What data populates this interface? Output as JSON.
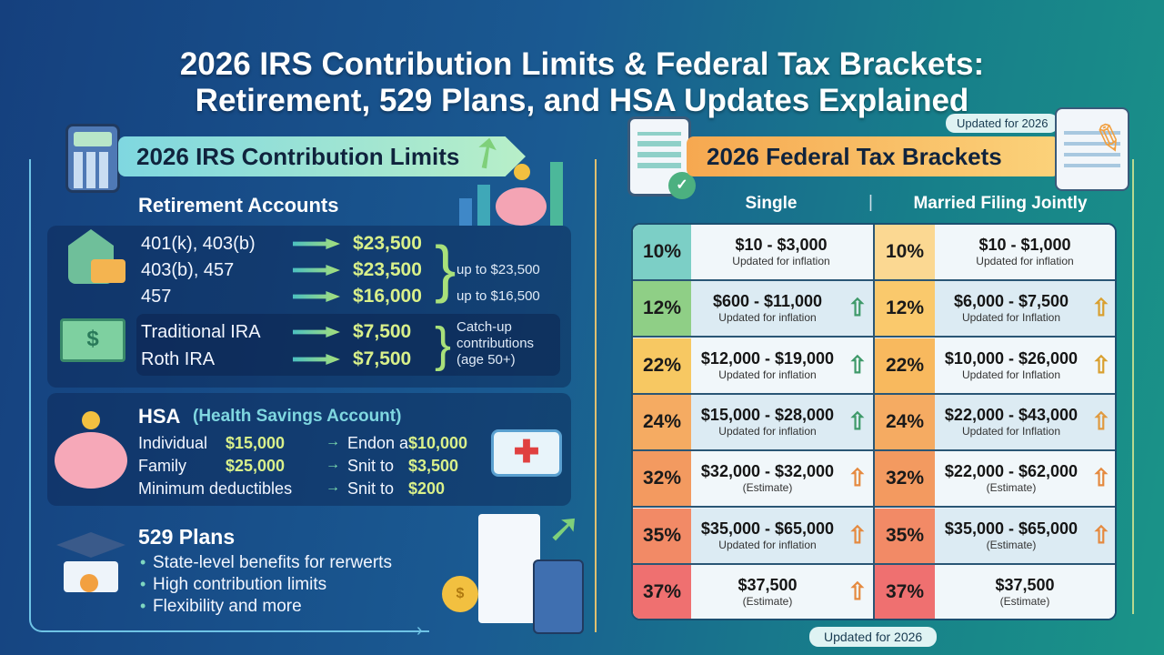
{
  "title": {
    "line1": "2026 IRS Contribution Limits & Federal Tax Brackets:",
    "line2": "Retirement, 529 Plans, and HSA Updates Explained"
  },
  "left": {
    "banner": "2026 IRS Contribution Limits",
    "retirement_heading": "Retirement Accounts",
    "retirement": [
      {
        "label": "401(k), 403(b)",
        "value": "$23,500"
      },
      {
        "label": "403(b), 457",
        "value": "$23,500"
      },
      {
        "label": "457",
        "value": "$16,000"
      }
    ],
    "retirement_notes": [
      "up to $23,500",
      "up to $16,500"
    ],
    "ira": [
      {
        "label": "Traditional IRA",
        "value": "$7,500"
      },
      {
        "label": "Roth IRA",
        "value": "$7,500"
      }
    ],
    "ira_note": "Catch-up contributions (age 50+)",
    "hsa": {
      "title": "HSA",
      "subtitle": "(Health Savings Account)",
      "rows": [
        {
          "label": "Individual",
          "value": "$15,000",
          "arrow": "→",
          "note": "Endon a",
          "note_value": "$10,000"
        },
        {
          "label": "Family",
          "value": "$25,000",
          "arrow": "→",
          "note": "Snit to",
          "note_value": "$3,500"
        },
        {
          "label": "Minimum deductibles",
          "value": "",
          "arrow": "→",
          "note": "Snit to",
          "note_value": "$200"
        }
      ]
    },
    "plans529": {
      "title": "529 Plans",
      "bullets": [
        "State-level benefits for rerwerts",
        "High contribution limits",
        "Flexibility and more"
      ]
    }
  },
  "right": {
    "badge_top": "Updated for 2026",
    "banner": "2026 Federal Tax Brackets",
    "col_single": "Single",
    "col_separator": "|",
    "col_married": "Married Filing Jointly",
    "single": [
      {
        "rate": "10%",
        "range": "$10 - $3,000",
        "note": "Updated for inflation",
        "arrow": "",
        "color": "#7ccfc6",
        "arrow_color": ""
      },
      {
        "rate": "12%",
        "range": "$600 - $11,000",
        "note": "Updated for inflation",
        "arrow": "⇧",
        "color": "#8fcf86",
        "arrow_color": "#3f9a6a"
      },
      {
        "rate": "22%",
        "range": "$12,000 - $19,000",
        "note": "Updated for inflation",
        "arrow": "⇧",
        "color": "#f7c862",
        "arrow_color": "#3f9a6a"
      },
      {
        "rate": "24%",
        "range": "$15,000 - $28,000",
        "note": "Updated for inflation",
        "arrow": "⇧",
        "color": "#f5ab62",
        "arrow_color": "#3f9a6a"
      },
      {
        "rate": "32%",
        "range": "$32,000 - $32,000",
        "note": "(Estimate)",
        "arrow": "⇧",
        "color": "#f39a60",
        "arrow_color": "#e58a40"
      },
      {
        "rate": "35%",
        "range": "$35,000 - $65,000",
        "note": "Updated for inflation",
        "arrow": "⇧",
        "color": "#f28a66",
        "arrow_color": "#e58a40"
      },
      {
        "rate": "37%",
        "range": "$37,500",
        "note": "(Estimate)",
        "arrow": "⇧",
        "color": "#ef7070",
        "arrow_color": "#e58a40"
      }
    ],
    "married": [
      {
        "rate": "10%",
        "range": "$10 - $1,000",
        "note": "Updated for inflation",
        "arrow": "",
        "color": "#fbd892",
        "arrow_color": ""
      },
      {
        "rate": "12%",
        "range": "$6,000 - $7,500",
        "note": "Updated for Inflation",
        "arrow": "⇧",
        "color": "#fac96c",
        "arrow_color": "#d9a030"
      },
      {
        "rate": "22%",
        "range": "$10,000 - $26,000",
        "note": "Updated for Inflation",
        "arrow": "⇧",
        "color": "#f8b95e",
        "arrow_color": "#d9a030"
      },
      {
        "rate": "24%",
        "range": "$22,000 - $43,000",
        "note": "Updated for Inflation",
        "arrow": "⇧",
        "color": "#f5ab62",
        "arrow_color": "#e09a40"
      },
      {
        "rate": "32%",
        "range": "$22,000 - $62,000",
        "note": "(Estimate)",
        "arrow": "⇧",
        "color": "#f39a60",
        "arrow_color": "#e58a40"
      },
      {
        "rate": "35%",
        "range": "$35,000 - $65,000",
        "note": "(Estimate)",
        "arrow": "⇧",
        "color": "#f28a66",
        "arrow_color": "#e58a40"
      },
      {
        "rate": "37%",
        "range": "$37,500",
        "note": "(Estimate)",
        "arrow": "",
        "color": "#ef7070",
        "arrow_color": ""
      }
    ],
    "badge_bottom": "Updated for 2026"
  },
  "icons": [
    "calculator-icon",
    "growth-chart-piggy-icon",
    "bank-icon",
    "cash-icon",
    "piggy-bank-icon",
    "first-aid-kit-icon",
    "graduation-cap-icon",
    "document-calculator-icon",
    "clipboard-icon",
    "tax-form-pencil-icon"
  ]
}
